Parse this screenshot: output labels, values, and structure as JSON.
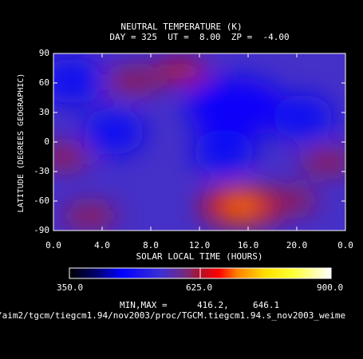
{
  "chart_data": {
    "type": "heatmap",
    "title": "NEUTRAL TEMPERATURE (K)",
    "subtitle": "DAY = 325  UT =  8.00  ZP =  -4.00",
    "xlabel": "SOLAR LOCAL TIME (HOURS)",
    "ylabel": "LATITUDE (DEGREES GEOGRAPHIC)",
    "xlim": [
      0,
      24
    ],
    "ylim": [
      -90,
      90
    ],
    "x_ticks": [
      "0.0",
      "4.0",
      "8.0",
      "12.0",
      "16.0",
      "20.0",
      "0.0"
    ],
    "y_ticks": [
      "90",
      "60",
      "30",
      "0",
      "-30",
      "-60",
      "-90"
    ],
    "colorbar": {
      "min_label": "350.0",
      "mid_label": "625.0",
      "max_label": "900.0",
      "range": [
        350,
        900
      ]
    },
    "min_max_label": "MIN,MAX =",
    "min_value": "416.2,",
    "max_value": "646.1",
    "hotspots": [
      {
        "lt": 15.5,
        "lat": -65,
        "temp": 646,
        "note": "max"
      },
      {
        "lt": 10.5,
        "lat": 72,
        "temp": 590
      },
      {
        "lt": 6.5,
        "lat": 62,
        "temp": 560
      },
      {
        "lt": 3.0,
        "lat": -75,
        "temp": 560
      },
      {
        "lt": 19.5,
        "lat": -60,
        "temp": 555
      },
      {
        "lt": 22.5,
        "lat": -20,
        "temp": 560
      },
      {
        "lt": 0.8,
        "lat": -15,
        "temp": 520
      }
    ],
    "coldspots": [
      {
        "lt": 15.0,
        "lat": 35,
        "temp": 416,
        "note": "min"
      },
      {
        "lt": 5.0,
        "lat": 10,
        "temp": 430
      },
      {
        "lt": 1.5,
        "lat": 62,
        "temp": 430
      },
      {
        "lt": 20.5,
        "lat": 25,
        "temp": 430
      },
      {
        "lt": 14.0,
        "lat": -10,
        "temp": 440
      }
    ]
  },
  "footer_path": "/aim2/tgcm/tiegcm1.94/nov2003/proc/TGCM.tiegcm1.94.s_nov2003_weime"
}
